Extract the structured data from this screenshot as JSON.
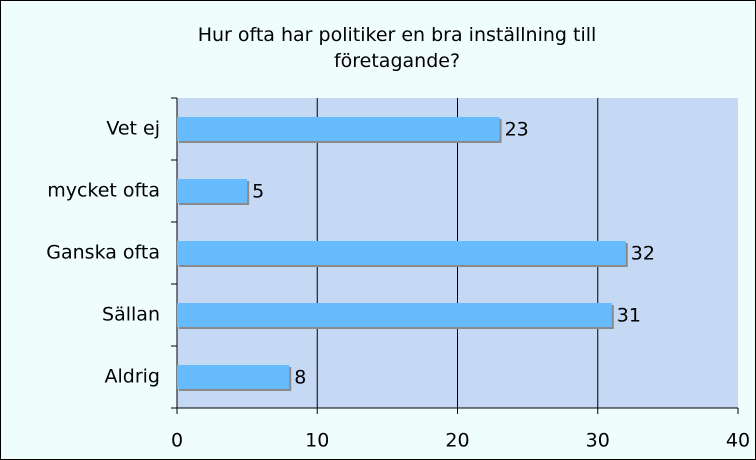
{
  "chart_data": {
    "type": "bar",
    "orientation": "horizontal",
    "title": "Hur ofta har politiker en bra inställning till företagande?",
    "categories": [
      "Vet ej",
      "mycket ofta",
      "Ganska ofta",
      "Sällan",
      "Aldrig"
    ],
    "values": [
      23,
      5,
      32,
      31,
      8
    ],
    "color": "#66bbff",
    "xlim": [
      0,
      40
    ],
    "xticks": [
      0,
      10,
      20,
      30,
      40
    ],
    "grid": true
  }
}
